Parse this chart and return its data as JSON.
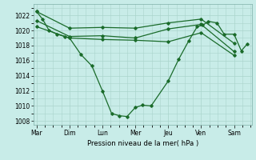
{
  "xlabel": "Pression niveau de la mer( hPa )",
  "bg_color": "#c8ece8",
  "grid_color": "#aad4cc",
  "line_color": "#1a6b2a",
  "ylim": [
    1007.5,
    1023.5
  ],
  "yticks": [
    1008,
    1010,
    1012,
    1014,
    1016,
    1018,
    1020,
    1022
  ],
  "days": [
    "Mar",
    "Dim",
    "Lun",
    "Mer",
    "Jeu",
    "Ven",
    "Sam"
  ],
  "line1_x": [
    0,
    1,
    2,
    3,
    4,
    5,
    6
  ],
  "line1_y": [
    1022.5,
    1020.3,
    1020.4,
    1020.3,
    1021.0,
    1021.5,
    1018.3
  ],
  "line2_x": [
    0,
    1,
    2,
    3,
    4,
    5,
    6
  ],
  "line2_y": [
    1021.3,
    1019.2,
    1019.3,
    1019.0,
    1020.2,
    1020.8,
    1017.2
  ],
  "line3_x": [
    0,
    1,
    2,
    3,
    4,
    5,
    6
  ],
  "line3_y": [
    1020.5,
    1019.0,
    1018.8,
    1018.7,
    1018.5,
    1019.7,
    1016.7
  ],
  "line4_x": [
    0,
    0.18,
    0.38,
    0.62,
    0.85,
    1.0,
    1.35,
    1.68,
    2.0,
    2.28,
    2.52,
    2.75,
    3.0,
    3.22,
    3.48,
    4.0,
    4.32,
    4.62,
    4.88,
    5.05,
    5.22,
    5.48,
    5.7,
    6.0,
    6.22,
    6.4
  ],
  "line4_y": [
    1022.5,
    1021.5,
    1020.0,
    1019.5,
    1019.2,
    1019.0,
    1016.8,
    1015.3,
    1012.0,
    1009.0,
    1008.7,
    1008.6,
    1009.8,
    1010.1,
    1010.0,
    1013.3,
    1016.2,
    1018.6,
    1020.5,
    1020.7,
    1021.2,
    1021.0,
    1019.5,
    1019.5,
    1017.3,
    1018.2
  ]
}
